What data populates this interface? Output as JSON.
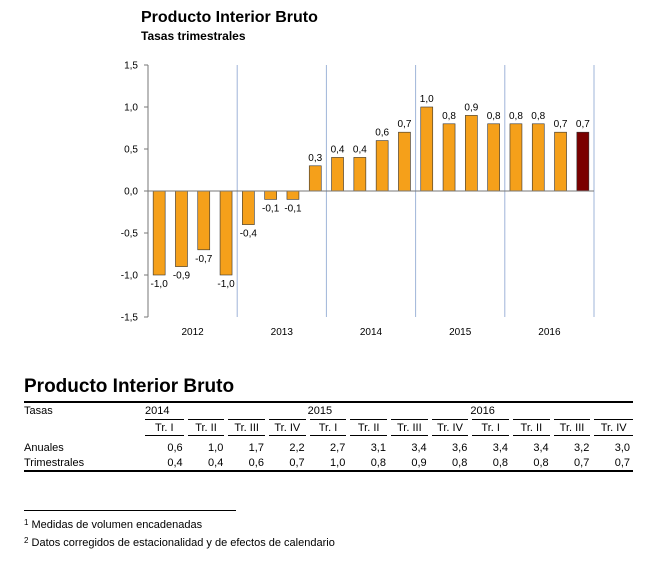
{
  "chart_data": {
    "type": "bar",
    "title": "Producto Interior Bruto",
    "subtitle": "Tasas trimestrales",
    "ylim": [
      -1.5,
      1.5
    ],
    "yticks": [
      "1,5",
      "1,0",
      "0,5",
      "0,0",
      "-0,5",
      "-1,0",
      "-1,5"
    ],
    "ytick_values": [
      1.5,
      1.0,
      0.5,
      0.0,
      -0.5,
      -1.0,
      -1.5
    ],
    "groups": [
      "2012",
      "2013",
      "2014",
      "2015",
      "2016"
    ],
    "values": [
      -1.0,
      -0.9,
      -0.7,
      -1.0,
      -0.4,
      -0.1,
      -0.1,
      0.3,
      0.4,
      0.4,
      0.6,
      0.7,
      1.0,
      0.8,
      0.9,
      0.8,
      0.8,
      0.8,
      0.7,
      0.7
    ],
    "labels": [
      "-1,0",
      "-0,9",
      "-0,7",
      "-1,0",
      "-0,4",
      "-0,1",
      "-0,1",
      "0,3",
      "0,4",
      "0,4",
      "0,6",
      "0,7",
      "1,0",
      "0,8",
      "0,9",
      "0,8",
      "0,8",
      "0,8",
      "0,7",
      "0,7"
    ],
    "bar_color": "#f5a01a",
    "last_bar_color": "#7a0000",
    "grid": "vertical separators between years"
  },
  "table": {
    "title": "Producto Interior Bruto",
    "corner": "Tasas",
    "years": [
      "2014",
      "2015",
      "2016"
    ],
    "quarters": [
      "Tr. I",
      "Tr. II",
      "Tr. III",
      "Tr. IV"
    ],
    "rows": [
      {
        "label": "Anuales",
        "values": [
          "0,6",
          "1,0",
          "1,7",
          "2,2",
          "2,7",
          "3,1",
          "3,4",
          "3,6",
          "3,4",
          "3,4",
          "3,2",
          "3,0"
        ]
      },
      {
        "label": "Trimestrales",
        "values": [
          "0,4",
          "0,4",
          "0,6",
          "0,7",
          "1,0",
          "0,8",
          "0,9",
          "0,8",
          "0,8",
          "0,8",
          "0,7",
          "0,7"
        ]
      }
    ]
  },
  "footnotes": [
    {
      "mark": "1",
      "text": "Medidas de volumen encadenadas"
    },
    {
      "mark": "2",
      "text": "Datos corregidos de estacionalidad y de efectos de calendario"
    }
  ]
}
